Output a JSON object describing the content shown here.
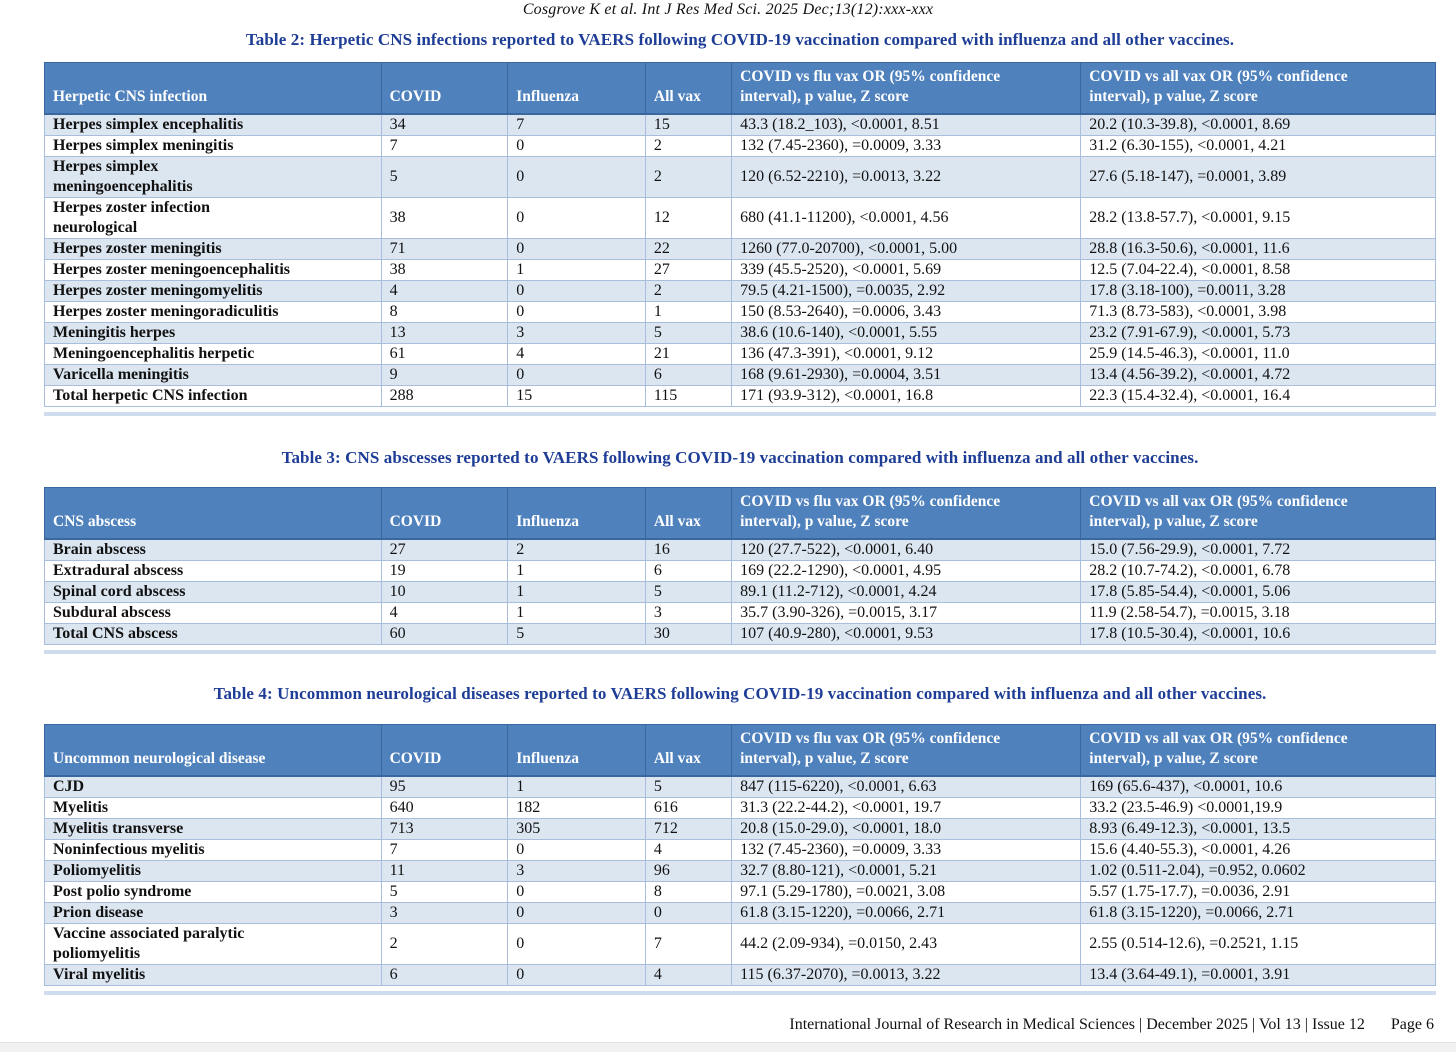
{
  "page": {
    "running_head": "Cosgrove K et al. Int J Res Med Sci. 2025 Dec;13(12):xxx-xxx",
    "footer": {
      "journal_line": "International Journal of Research in Medical Sciences | December 2025 | Vol 13 | Issue 12",
      "page_label": "Page 6"
    }
  },
  "colors": {
    "table_header_fill": "#4f81bd",
    "band_row_fill": "#dce6f1",
    "title_blue": "#1e3d96",
    "grid_border": "#a9bedd"
  },
  "tables": [
    {
      "id": "table-2",
      "title": "Table 2: Herpetic CNS infections reported to VAERS following COVID-19 vaccination compared with influenza and all other vaccines.",
      "headers": [
        "Herpetic CNS infection",
        "COVID",
        "Influenza",
        "All vax",
        "COVID vs flu vax OR (95% confidence\ninterval), p value, Z score",
        "COVID vs all vax OR (95% confidence\ninterval), p value, Z score"
      ],
      "col_widths": [
        "24.2%",
        "9.1%",
        "9.9%",
        "6.2%",
        "25.1%",
        "25.5%"
      ],
      "rows": [
        [
          "Herpes simplex encephalitis",
          "34",
          "7",
          "15",
          "43.3 (18.2_103), <0.0001, 8.51",
          "20.2 (10.3-39.8), <0.0001, 8.69"
        ],
        [
          "Herpes simplex meningitis",
          "7",
          "0",
          "2",
          "132 (7.45-2360), =0.0009, 3.33",
          "31.2 (6.30-155), <0.0001, 4.21"
        ],
        [
          "Herpes simplex\nmeningoencephalitis",
          "5",
          "0",
          "2",
          "120 (6.52-2210), =0.0013, 3.22",
          "27.6 (5.18-147), =0.0001, 3.89"
        ],
        [
          "Herpes zoster infection\nneurological",
          "38",
          "0",
          "12",
          "680 (41.1-11200), <0.0001, 4.56",
          "28.2 (13.8-57.7), <0.0001, 9.15"
        ],
        [
          "Herpes zoster meningitis",
          "71",
          "0",
          "22",
          "1260 (77.0-20700), <0.0001, 5.00",
          "28.8 (16.3-50.6), <0.0001, 11.6"
        ],
        [
          "Herpes zoster meningoencephalitis",
          "38",
          "1",
          "27",
          "339 (45.5-2520), <0.0001, 5.69",
          "12.5 (7.04-22.4), <0.0001, 8.58"
        ],
        [
          "Herpes zoster meningomyelitis",
          "4",
          "0",
          "2",
          "79.5 (4.21-1500), =0.0035, 2.92",
          "17.8 (3.18-100), =0.0011, 3.28"
        ],
        [
          "Herpes zoster meningoradiculitis",
          "8",
          "0",
          "1",
          "150 (8.53-2640), =0.0006, 3.43",
          "71.3 (8.73-583), <0.0001, 3.98"
        ],
        [
          "Meningitis herpes",
          "13",
          "3",
          "5",
          "38.6 (10.6-140), <0.0001, 5.55",
          "23.2 (7.91-67.9), <0.0001, 5.73"
        ],
        [
          "Meningoencephalitis herpetic",
          "61",
          "4",
          "21",
          "136 (47.3-391), <0.0001, 9.12",
          "25.9 (14.5-46.3), <0.0001, 11.0"
        ],
        [
          "Varicella meningitis",
          "9",
          "0",
          "6",
          "168 (9.61-2930), =0.0004, 3.51",
          "13.4 (4.56-39.2), <0.0001, 4.72"
        ],
        [
          "Total herpetic CNS infection",
          "288",
          "15",
          "115",
          "171 (93.9-312), <0.0001, 16.8",
          "22.3 (15.4-32.4), <0.0001, 16.4"
        ]
      ]
    },
    {
      "id": "table-3",
      "title": "Table 3: CNS abscesses reported to VAERS following COVID-19 vaccination compared with influenza and all other vaccines.",
      "headers": [
        "CNS abscess",
        "COVID",
        "Influenza",
        "All vax",
        "COVID vs flu vax OR (95% confidence\ninterval), p value, Z score",
        "COVID vs all vax OR (95% confidence\ninterval), p value, Z score"
      ],
      "col_widths": [
        "24.2%",
        "9.1%",
        "9.9%",
        "6.2%",
        "25.1%",
        "25.5%"
      ],
      "rows": [
        [
          "Brain abscess",
          "27",
          "2",
          "16",
          "120 (27.7-522), <0.0001, 6.40",
          "15.0 (7.56-29.9), <0.0001, 7.72"
        ],
        [
          "Extradural abscess",
          "19",
          "1",
          "6",
          "169 (22.2-1290), <0.0001, 4.95",
          "28.2 (10.7-74.2), <0.0001, 6.78"
        ],
        [
          "Spinal cord abscess",
          "10",
          "1",
          "5",
          "89.1 (11.2-712), <0.0001, 4.24",
          "17.8 (5.85-54.4), <0.0001, 5.06"
        ],
        [
          "Subdural abscess",
          "4",
          "1",
          "3",
          "35.7 (3.90-326), =0.0015, 3.17",
          "11.9 (2.58-54.7), =0.0015, 3.18"
        ],
        [
          "Total CNS abscess",
          "60",
          "5",
          "30",
          "107 (40.9-280), <0.0001, 9.53",
          "17.8 (10.5-30.4), <0.0001, 10.6"
        ]
      ]
    },
    {
      "id": "table-4",
      "title": "Table 4: Uncommon neurological diseases reported to VAERS following COVID-19 vaccination compared with influenza and all other vaccines.",
      "headers": [
        "Uncommon neurological disease",
        "COVID",
        "Influenza",
        "All vax",
        "COVID vs flu vax OR (95% confidence\ninterval), p value, Z score",
        "COVID vs all vax OR (95% confidence\ninterval), p value, Z score"
      ],
      "col_widths": [
        "24.2%",
        "9.1%",
        "9.9%",
        "6.2%",
        "25.1%",
        "25.5%"
      ],
      "rows": [
        [
          "CJD",
          "95",
          "1",
          "5",
          "847 (115-6220), <0.0001, 6.63",
          "169 (65.6-437), <0.0001, 10.6"
        ],
        [
          "Myelitis",
          "640",
          "182",
          "616",
          "31.3 (22.2-44.2), <0.0001, 19.7",
          "33.2 (23.5-46.9) <0.0001,19.9"
        ],
        [
          "Myelitis transverse",
          "713",
          "305",
          "712",
          "20.8 (15.0-29.0), <0.0001, 18.0",
          "8.93 (6.49-12.3), <0.0001, 13.5"
        ],
        [
          "Noninfectious myelitis",
          "7",
          "0",
          "4",
          "132 (7.45-2360), =0.0009, 3.33",
          "15.6 (4.40-55.3), <0.0001, 4.26"
        ],
        [
          "Poliomyelitis",
          "11",
          "3",
          "96",
          "32.7 (8.80-121), <0.0001, 5.21",
          "1.02 (0.511-2.04), =0.952, 0.0602"
        ],
        [
          "Post polio syndrome",
          "5",
          "0",
          "8",
          "97.1 (5.29-1780), =0.0021, 3.08",
          "5.57 (1.75-17.7), =0.0036, 2.91"
        ],
        [
          "Prion disease",
          "3",
          "0",
          "0",
          "61.8 (3.15-1220), =0.0066, 2.71",
          "61.8 (3.15-1220), =0.0066, 2.71"
        ],
        [
          "Vaccine associated paralytic\npoliomyelitis",
          "2",
          "0",
          "7",
          "44.2 (2.09-934), =0.0150, 2.43",
          "2.55 (0.514-12.6), =0.2521, 1.15"
        ],
        [
          "Viral myelitis",
          "6",
          "0",
          "4",
          "115 (6.37-2070), =0.0013, 3.22",
          "13.4 (3.64-49.1), =0.0001, 3.91"
        ]
      ]
    }
  ]
}
